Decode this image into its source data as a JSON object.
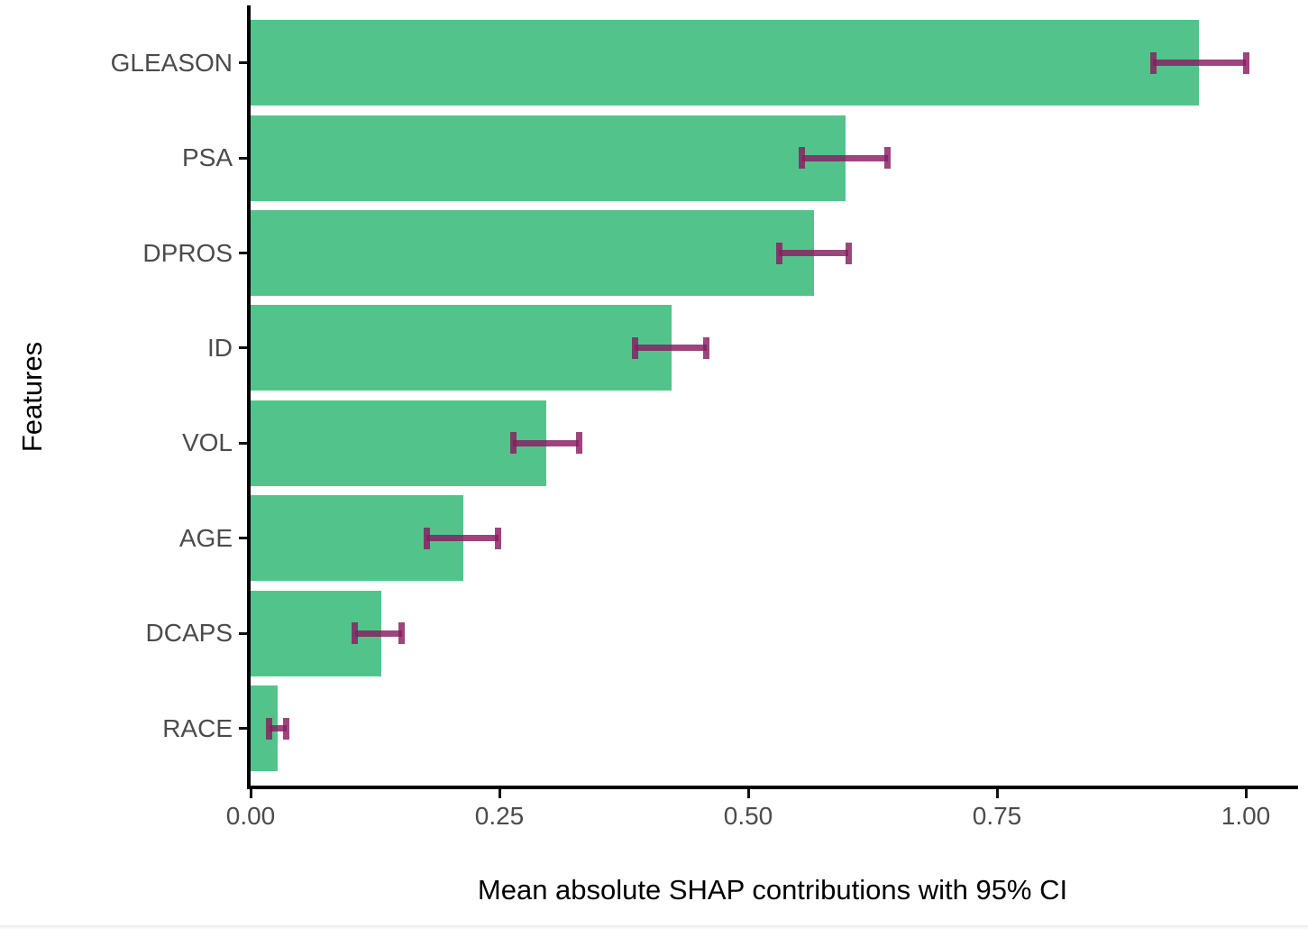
{
  "chart_data": {
    "type": "bar",
    "orientation": "horizontal",
    "xlabel": "Mean absolute SHAP contributions with 95% CI",
    "ylabel": "Features",
    "categories": [
      "GLEASON",
      "PSA",
      "DPROS",
      "ID",
      "VOL",
      "AGE",
      "DCAPS",
      "RACE"
    ],
    "values": [
      0.953,
      0.598,
      0.566,
      0.423,
      0.297,
      0.214,
      0.131,
      0.027
    ],
    "ci_low": [
      0.907,
      0.554,
      0.531,
      0.386,
      0.264,
      0.177,
      0.105,
      0.019
    ],
    "ci_high": [
      1.0,
      0.64,
      0.601,
      0.458,
      0.33,
      0.249,
      0.152,
      0.036
    ],
    "x_ticks": [
      0,
      0.25,
      0.5,
      0.75,
      1.0
    ],
    "x_tick_labels": [
      "0.00",
      "0.25",
      "0.50",
      "0.75",
      "1.00"
    ],
    "xlim": [
      0,
      1.053
    ],
    "grid": false,
    "legend": false,
    "bar_color": "#52c48b",
    "errorbar_color": "#881c60",
    "errorbar_alpha": 0.82,
    "axis_color": "#000000",
    "tick_label_color": "#4b4b4b"
  }
}
